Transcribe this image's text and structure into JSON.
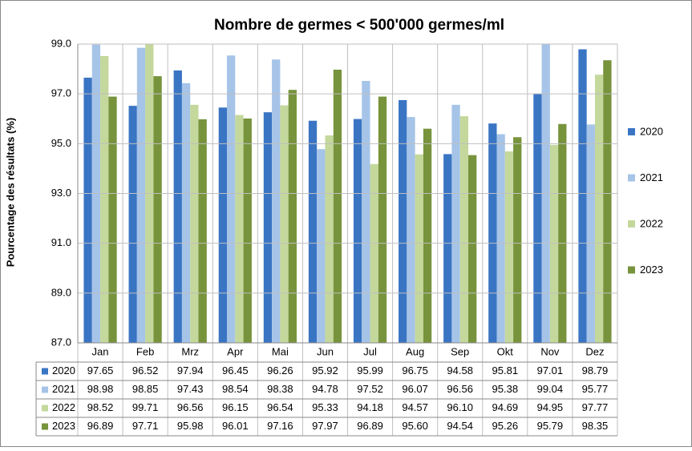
{
  "chart_data": {
    "type": "bar",
    "title": "Nombre de germes < 500'000 germes/ml",
    "y_label": "Pourcentage des résultats (%)",
    "categories": [
      "Jan",
      "Feb",
      "Mrz",
      "Apr",
      "Mai",
      "Jun",
      "Jul",
      "Aug",
      "Sep",
      "Okt",
      "Nov",
      "Dez"
    ],
    "series": [
      {
        "name": "2020",
        "color": "#3a75c4",
        "values": [
          97.65,
          96.52,
          97.94,
          96.45,
          96.26,
          95.92,
          95.99,
          96.75,
          94.58,
          95.81,
          97.01,
          98.79
        ],
        "value_labels": [
          "97.65",
          "96.52",
          "97.94",
          "96.45",
          "96.26",
          "95.92",
          "95.99",
          "96.75",
          "94.58",
          "95.81",
          "97.01",
          "98.79"
        ]
      },
      {
        "name": "2021",
        "color": "#a6c4e8",
        "values": [
          98.98,
          98.85,
          97.43,
          98.54,
          98.38,
          94.78,
          97.52,
          96.07,
          96.56,
          95.38,
          99.04,
          95.77
        ],
        "value_labels": [
          "98.98",
          "98.85",
          "97.43",
          "98.54",
          "98.38",
          "94.78",
          "97.52",
          "96.07",
          "96.56",
          "95.38",
          "99.04",
          "95.77"
        ]
      },
      {
        "name": "2022",
        "color": "#c4d89c",
        "values": [
          98.52,
          99.71,
          96.56,
          96.15,
          96.54,
          95.33,
          94.18,
          94.57,
          96.1,
          94.69,
          94.95,
          97.77
        ],
        "value_labels": [
          "98.52",
          "99.71",
          "96.56",
          "96.15",
          "96.54",
          "95.33",
          "94.18",
          "94.57",
          "96.10",
          "94.69",
          "94.95",
          "97.77"
        ]
      },
      {
        "name": "2023",
        "color": "#77933c",
        "values": [
          96.89,
          97.71,
          95.98,
          96.01,
          97.16,
          97.97,
          96.89,
          95.6,
          94.54,
          95.26,
          95.79,
          98.35
        ],
        "value_labels": [
          "96.89",
          "97.71",
          "95.98",
          "96.01",
          "97.16",
          "97.97",
          "96.89",
          "95.60",
          "94.54",
          "95.26",
          "95.79",
          "98.35"
        ]
      }
    ],
    "ylim": [
      87,
      99
    ],
    "yticks": [
      {
        "value": 87,
        "label": "87.0"
      },
      {
        "value": 89,
        "label": "89.0"
      },
      {
        "value": 91,
        "label": "91.0"
      },
      {
        "value": 93,
        "label": "93.0"
      },
      {
        "value": 95,
        "label": "95.0"
      },
      {
        "value": 97,
        "label": "97.0"
      },
      {
        "value": 99,
        "label": "99.0"
      }
    ],
    "grid": true,
    "legend": "right"
  }
}
